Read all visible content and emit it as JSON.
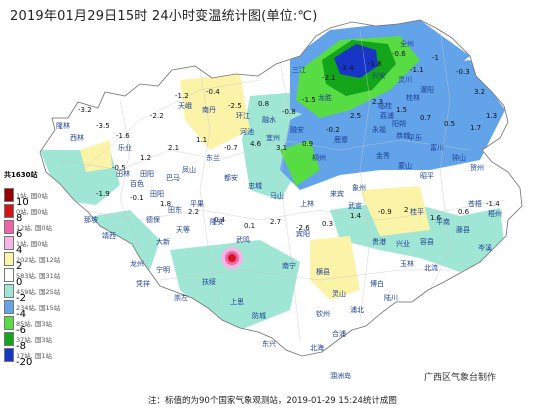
{
  "title": "2019年01月29日15时 24小时变温统计图(单位:℃)",
  "legend": {
    "total": "共1630站",
    "items": [
      {
        "value": "",
        "count": "1站, 国0站",
        "color": "#9b0000"
      },
      {
        "value": "10",
        "count": "0站, 国0站",
        "color": "#d6121a"
      },
      {
        "value": "8",
        "count": "12站, 国0站",
        "color": "#f063a7"
      },
      {
        "value": "6",
        "count": "1站, 国0站",
        "color": "#f5b6e3"
      },
      {
        "value": "4",
        "count": "202站, 国12站",
        "color": "#fbf3a8"
      },
      {
        "value": "2",
        "count": "583站, 国31站",
        "color": "#ffffff"
      },
      {
        "value": "0",
        "count": "459站, 国25站",
        "color": "#9fe6d4"
      },
      {
        "value": "-2",
        "count": "234站, 国15站",
        "color": "#62a3ea"
      },
      {
        "value": "-4",
        "count": "85站, 国3站",
        "color": "#58dc43"
      },
      {
        "value": "-6",
        "count": "37站, 国3站",
        "color": "#13a51a"
      },
      {
        "value": "-8",
        "count": "17站, 国1站",
        "color": "#1736c8"
      },
      {
        "value": "-20",
        "count": "",
        "color": ""
      }
    ]
  },
  "agency": "广西区气象台制作",
  "footnote": "注：标值的为90个国家气象观测站，2019-01-29 15:24统计成图",
  "cities": [
    "隆林",
    "西林",
    "乐业",
    "天峨",
    "南丹",
    "环江",
    "融水",
    "三江",
    "龙胜",
    "资源",
    "兴安",
    "全州",
    "灌阳",
    "恭城",
    "富川",
    "钟山",
    "贺州",
    "昭平",
    "蒙山",
    "金秀",
    "象州",
    "来宾",
    "柳州",
    "鹿寨",
    "融安",
    "宜州",
    "河池",
    "东兰",
    "凤山",
    "巴马",
    "都安",
    "忠城",
    "马山",
    "上林",
    "宾阳",
    "武鸣",
    "南宁",
    "隆安",
    "平果",
    "田东",
    "田阳",
    "百色",
    "田林",
    "德保",
    "靖西",
    "那坡",
    "大新",
    "天等",
    "龙州",
    "凭祥",
    "宁明",
    "扶绥",
    "崇左",
    "上思",
    "防城",
    "东兴",
    "钦州",
    "灵山",
    "浦北",
    "合浦",
    "北海",
    "涠洲岛",
    "博白",
    "陆川",
    "玉林",
    "北流",
    "容县",
    "兴业",
    "贵港",
    "平南",
    "桂平",
    "藤县",
    "苍梧",
    "岑溪",
    "梧州",
    "武宣",
    "荔浦",
    "平乐",
    "阳朔",
    "永福",
    "临桂",
    "桂林",
    "灵川",
    "横县",
    "田阳"
  ],
  "numbers": [
    "-3.2",
    "-3.5",
    "-1.6",
    "-2.2",
    "-1.2",
    "-0.4",
    "-2.5",
    "0.8",
    "-0.8",
    "-1.5",
    "-2.1",
    "-2.4",
    "-1.8",
    "-0.6",
    "-1.1",
    "-1",
    "-0.3",
    "3.2",
    "1.3",
    "1.7",
    "0.5",
    "0.7",
    "1.5",
    "2.3",
    "2.5",
    "-0.2",
    "0.9",
    "3.1",
    "4.6",
    "-0.7",
    "1.1",
    "2.1",
    "1.2",
    "-0.5",
    "-1.9",
    "-0.1",
    "1.8",
    "2.2",
    "0.4",
    "0.1",
    "2.7",
    "-2.6",
    "0.3",
    "1.4",
    "-0.9",
    "2",
    "1.6",
    "0.6",
    "-1.4"
  ]
}
